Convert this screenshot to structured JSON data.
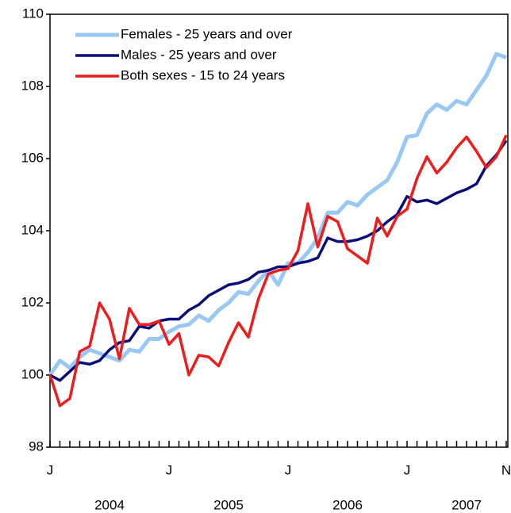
{
  "chart_data": {
    "type": "line",
    "categories": [
      "J",
      null,
      null,
      null,
      null,
      null,
      null,
      null,
      null,
      null,
      null,
      null,
      "J",
      null,
      null,
      null,
      null,
      null,
      null,
      null,
      null,
      null,
      null,
      null,
      "J",
      null,
      null,
      null,
      null,
      null,
      null,
      null,
      null,
      null,
      null,
      null,
      "J",
      null,
      null,
      null,
      null,
      null,
      null,
      null,
      null,
      null,
      "N"
    ],
    "year_labels": [
      "2004",
      "2005",
      "2006",
      "2007"
    ],
    "ylim": [
      98,
      110
    ],
    "yticks": [
      98,
      100,
      102,
      104,
      106,
      108,
      110
    ],
    "series": [
      {
        "name": "Females - 25 years and over",
        "color": "#99c8f5",
        "values": [
          100.0,
          100.4,
          100.2,
          100.5,
          100.7,
          100.6,
          100.5,
          100.4,
          100.7,
          100.65,
          101.0,
          101.0,
          101.2,
          101.35,
          101.4,
          101.65,
          101.5,
          101.8,
          102.0,
          102.3,
          102.25,
          102.6,
          102.9,
          102.5,
          103.1,
          103.1,
          103.4,
          103.8,
          104.5,
          104.5,
          104.8,
          104.7,
          105.0,
          105.2,
          105.4,
          105.9,
          106.6,
          106.65,
          107.25,
          107.5,
          107.35,
          107.6,
          107.5,
          107.9,
          108.3,
          108.9,
          108.8
        ]
      },
      {
        "name": "Males - 25 years and over",
        "color": "#0a0f78",
        "values": [
          100.0,
          99.85,
          100.1,
          100.35,
          100.3,
          100.4,
          100.7,
          100.9,
          100.95,
          101.35,
          101.3,
          101.5,
          101.55,
          101.55,
          101.8,
          101.95,
          102.2,
          102.35,
          102.5,
          102.55,
          102.65,
          102.85,
          102.9,
          103.0,
          103.0,
          103.1,
          103.15,
          103.25,
          103.8,
          103.7,
          103.7,
          103.75,
          103.85,
          104.0,
          104.25,
          104.45,
          104.95,
          104.8,
          104.85,
          104.75,
          104.9,
          105.05,
          105.15,
          105.3,
          105.8,
          106.1,
          106.5
        ]
      },
      {
        "name": "Both sexes - 15 to 24 years",
        "color": "#ee1c1c",
        "values": [
          100.0,
          99.15,
          99.35,
          100.65,
          100.8,
          102.0,
          101.55,
          100.45,
          101.85,
          101.4,
          101.4,
          101.5,
          100.85,
          101.15,
          100.0,
          100.55,
          100.5,
          100.25,
          100.9,
          101.45,
          101.05,
          102.1,
          102.8,
          102.9,
          102.95,
          103.45,
          104.75,
          103.55,
          104.4,
          104.25,
          103.5,
          103.3,
          103.1,
          104.35,
          103.85,
          104.4,
          104.6,
          105.45,
          106.05,
          105.6,
          105.9,
          106.3,
          106.6,
          106.2,
          105.75,
          106.05,
          106.65
        ]
      }
    ]
  }
}
